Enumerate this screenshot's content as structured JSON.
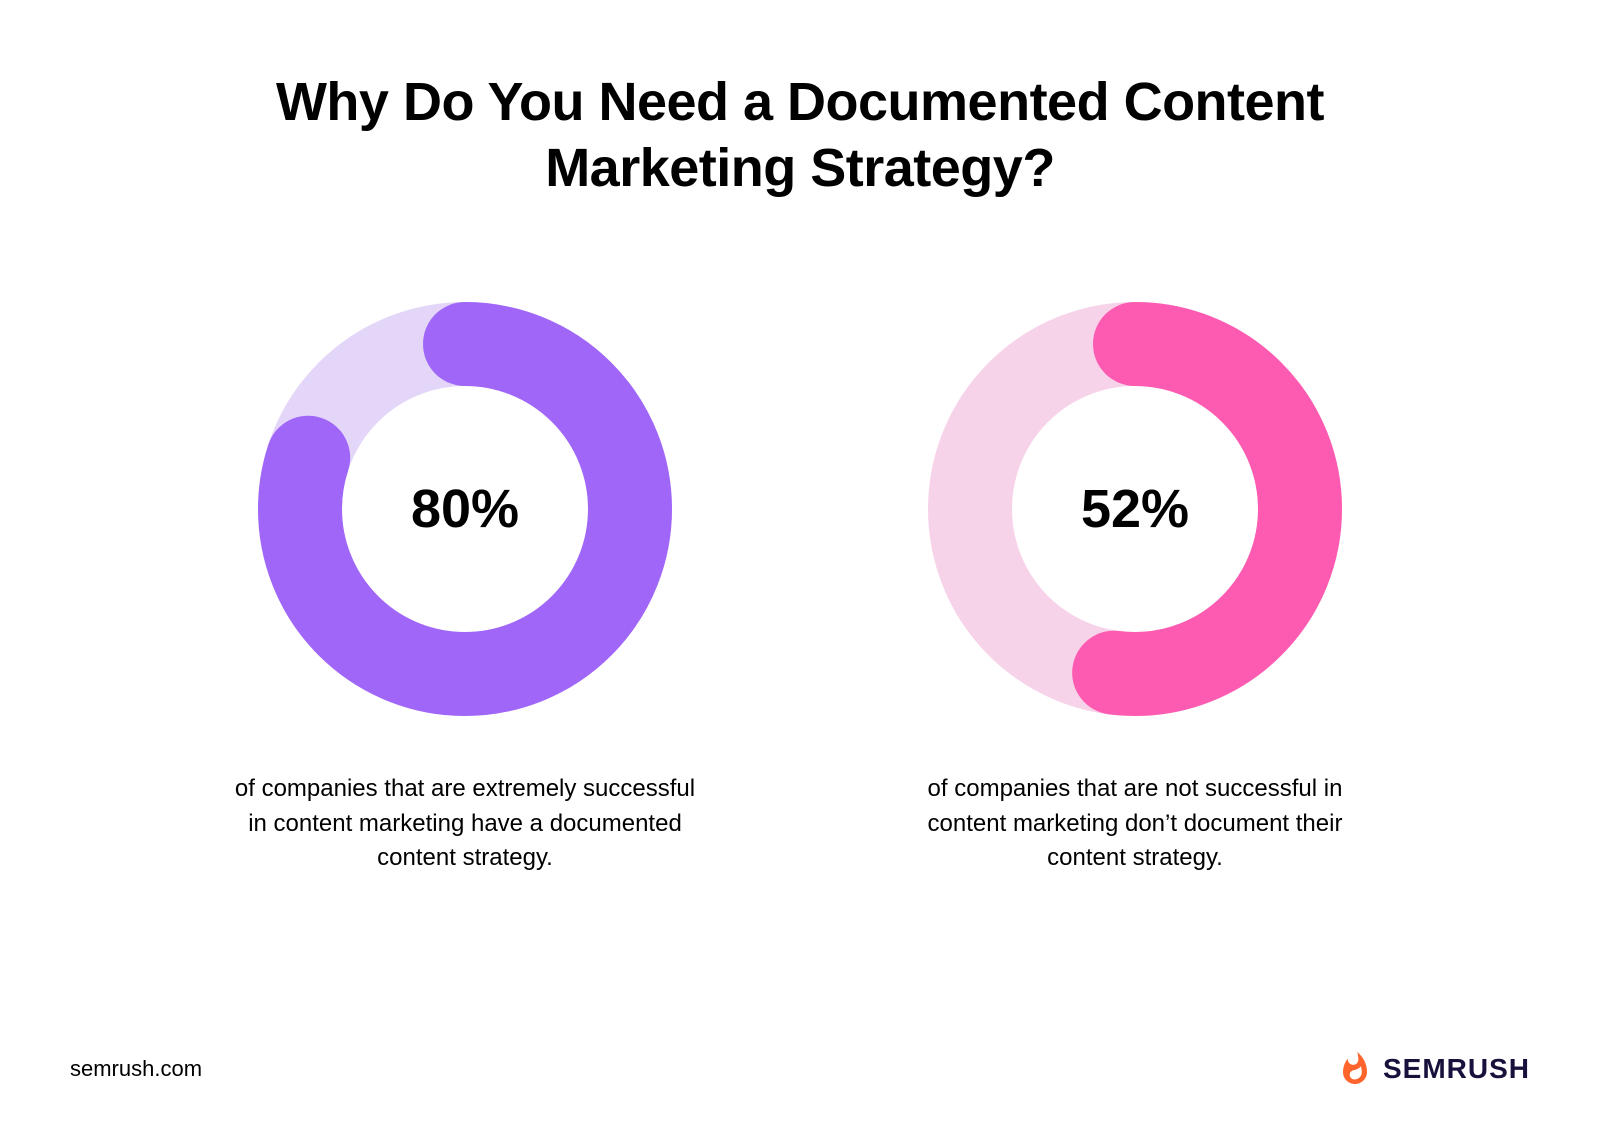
{
  "title": "Why Do You Need a Documented Content Marketing Strategy?",
  "title_fontsize": 54,
  "title_color": "#000000",
  "background_color": "#ffffff",
  "charts": [
    {
      "type": "donut",
      "percent": 80,
      "percent_label": "80%",
      "fg_color": "#a066f8",
      "bg_color": "#e4d6f9",
      "size": 414,
      "stroke_width": 84,
      "center_fontsize": 54,
      "center_fontweight": 700,
      "start_angle_deg": -90,
      "caption": "of companies that are extremely successful in content marketing have a documented content strategy.",
      "caption_fontsize": 24,
      "caption_maxwidth": 480
    },
    {
      "type": "donut",
      "percent": 52,
      "percent_label": "52%",
      "fg_color": "#fd5bb1",
      "bg_color": "#f7d3ea",
      "size": 414,
      "stroke_width": 84,
      "center_fontsize": 54,
      "center_fontweight": 700,
      "start_angle_deg": -90,
      "caption": "of companies that are not successful in content marketing don’t document their content strategy.",
      "caption_fontsize": 24,
      "caption_maxwidth": 480
    }
  ],
  "footer": {
    "url": "semrush.com",
    "url_fontsize": 22,
    "brand_name": "SEMRUSH",
    "brand_fontsize": 28,
    "brand_icon_color": "#ff642d",
    "brand_text_color": "#18113c"
  }
}
